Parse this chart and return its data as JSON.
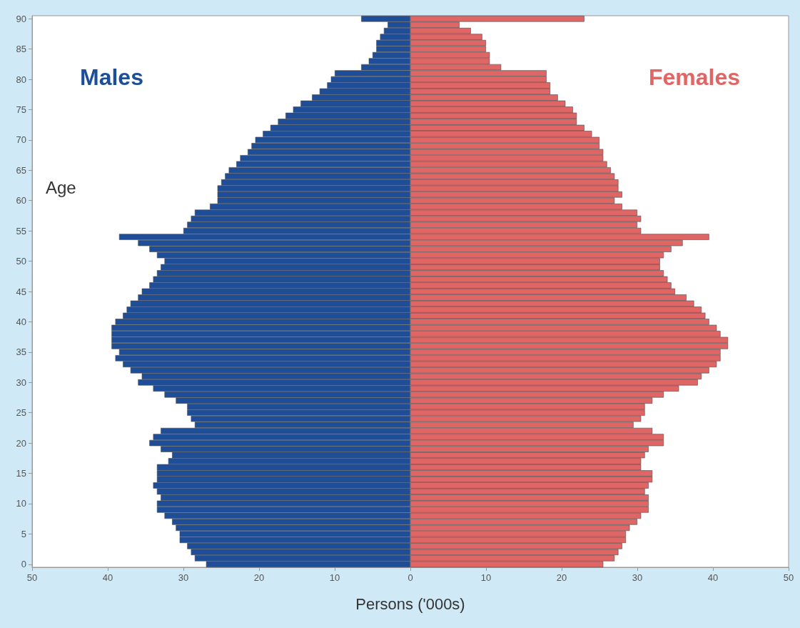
{
  "chart_data": {
    "type": "bar",
    "orientation": "horizontal",
    "stacked": true,
    "xlabel": "Persons ('000s)",
    "ylabel": "Age",
    "categories": [
      "90",
      null,
      null,
      null,
      null,
      "85",
      null,
      null,
      null,
      null,
      "80",
      null,
      null,
      null,
      null,
      "75",
      null,
      null,
      null,
      null,
      "70",
      null,
      null,
      null,
      null,
      "65",
      null,
      null,
      null,
      null,
      "60",
      null,
      null,
      null,
      null,
      "55",
      null,
      null,
      null,
      null,
      "50",
      null,
      null,
      null,
      null,
      "45",
      null,
      null,
      null,
      null,
      "40",
      null,
      null,
      null,
      null,
      "35",
      null,
      null,
      null,
      null,
      "30",
      null,
      null,
      null,
      null,
      "25",
      null,
      null,
      null,
      null,
      "20",
      null,
      null,
      null,
      null,
      "15",
      null,
      null,
      null,
      null,
      "10",
      null,
      null,
      null,
      null,
      "5",
      null,
      null,
      null,
      null,
      "0"
    ],
    "series": [
      {
        "name": "Males",
        "color": "#1f4e99",
        "values": [
          -6.5,
          -3,
          -3.5,
          -4,
          -4.5,
          -4.5,
          -5,
          -5.5,
          -6.5,
          -10,
          -10.5,
          -11,
          -12,
          -13,
          -14.5,
          -15.5,
          -16.5,
          -17.5,
          -18.5,
          -19.5,
          -20.5,
          -21,
          -21.5,
          -22.5,
          -23,
          -24,
          -24.5,
          -25,
          -25.5,
          -25.5,
          -25.5,
          -26.5,
          -28.5,
          -29,
          -29.5,
          -30,
          -38.5,
          -36,
          -34.5,
          -33.5,
          -32.5,
          -33,
          -33.5,
          -34,
          -34.5,
          -35.5,
          -36,
          -37,
          -37.5,
          -38,
          -39,
          -39.5,
          -39.5,
          -39.5,
          -39.5,
          -38.5,
          -39,
          -38,
          -37,
          -35.5,
          -36,
          -34,
          -32.5,
          -31,
          -29.5,
          -29.5,
          -29,
          -28.5,
          -33,
          -34,
          -34.5,
          -33,
          -31.5,
          -32,
          -33.5,
          -33.5,
          -33.5,
          -34,
          -33.5,
          -33,
          -33.5,
          -33.5,
          -32.5,
          -31.5,
          -31,
          -30.5,
          -30.5,
          -29.5,
          -29,
          -28.5,
          -27
        ]
      },
      {
        "name": "Females",
        "color": "#e06666",
        "values": [
          23,
          6.5,
          8,
          9.5,
          10,
          10,
          10.5,
          10.5,
          12,
          18,
          18,
          18.5,
          18.5,
          19.5,
          20.5,
          21.5,
          22,
          22,
          23,
          24,
          25,
          25,
          25.5,
          25.5,
          26,
          26.5,
          27,
          27.5,
          27.5,
          28,
          27,
          28,
          30,
          30.5,
          30,
          30.5,
          39.5,
          36,
          34.5,
          33.5,
          33,
          33,
          33.5,
          34,
          34.5,
          35,
          36.5,
          37.5,
          38.5,
          39,
          39.5,
          40.5,
          41,
          42,
          42,
          41,
          41,
          40.5,
          39.5,
          38.5,
          38,
          35.5,
          33.5,
          32,
          31,
          31,
          30.5,
          29.5,
          32,
          33.5,
          33.5,
          31.5,
          31,
          30.5,
          30.5,
          32,
          32,
          31.5,
          31,
          31.5,
          31.5,
          31.5,
          30.5,
          30,
          29,
          28.5,
          28.5,
          28,
          27.5,
          27,
          25.5
        ]
      }
    ],
    "xlim": [
      -50,
      50
    ],
    "xticks": [
      {
        "value": -50,
        "label": "50"
      },
      {
        "value": -40,
        "label": "40"
      },
      {
        "value": -30,
        "label": "30"
      },
      {
        "value": -20,
        "label": "20"
      },
      {
        "value": -10,
        "label": "10"
      },
      0,
      10,
      20,
      30,
      40,
      50
    ],
    "grid": false,
    "legend": false
  }
}
